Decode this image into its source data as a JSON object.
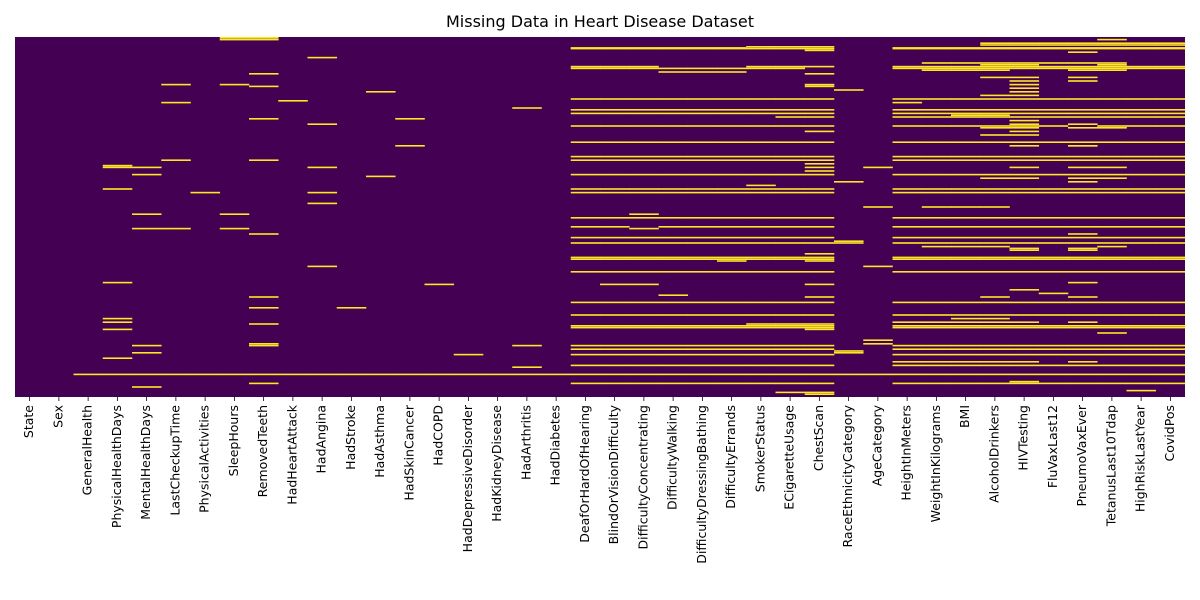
{
  "chart_data": {
    "type": "heatmap",
    "title": "Missing Data in Heart Disease Dataset",
    "xlabel": "",
    "ylabel": "",
    "colormap": {
      "low": "#440154",
      "high": "#fde725"
    },
    "legend": "none",
    "grid": false,
    "rows_normalized": true,
    "columns": [
      "State",
      "Sex",
      "GeneralHealth",
      "PhysicalHealthDays",
      "MentalHealthDays",
      "LastCheckupTime",
      "PhysicalActivities",
      "SleepHours",
      "RemovedTeeth",
      "HadHeartAttack",
      "HadAngina",
      "HadStroke",
      "HadAsthma",
      "HadSkinCancer",
      "HadCOPD",
      "HadDepressiveDisorder",
      "HadKidneyDisease",
      "HadArthritis",
      "HadDiabetes",
      "DeafOrHardOfHearing",
      "BlindOrVisionDifficulty",
      "DifficultyConcentrating",
      "DifficultyWalking",
      "DifficultyDressingBathing",
      "DifficultyErrands",
      "SmokerStatus",
      "ECigaretteUsage",
      "ChestScan",
      "RaceEthnicityCategory",
      "AgeCategory",
      "HeightInMeters",
      "WeightInKilograms",
      "BMI",
      "AlcoholDrinkers",
      "HIVTesting",
      "FluVaxLast12",
      "PneumoVaxEver",
      "TetanusLast10Tdap",
      "HighRiskLastYear",
      "CovidPos"
    ],
    "missing_rows": {
      "State": [],
      "Sex": [],
      "GeneralHealth": [
        0.935
      ],
      "PhysicalHealthDays": [
        0.355,
        0.36,
        0.42,
        0.68,
        0.78,
        0.79,
        0.81,
        0.89,
        0.935
      ],
      "MentalHealthDays": [
        0.36,
        0.38,
        0.49,
        0.53,
        0.855,
        0.875,
        0.97,
        0.935
      ],
      "LastCheckupTime": [
        0.13,
        0.18,
        0.34,
        0.53,
        0.935
      ],
      "PhysicalActivities": [
        0.43,
        0.935
      ],
      "SleepHours": [
        0.0,
        0.005,
        0.13,
        0.49,
        0.53,
        0.935
      ],
      "RemovedTeeth": [
        0.0,
        0.005,
        0.1,
        0.135,
        0.225,
        0.34,
        0.545,
        0.72,
        0.75,
        0.795,
        0.85,
        0.855,
        0.96,
        0.935
      ],
      "HadHeartAttack": [
        0.175,
        0.935
      ],
      "HadAngina": [
        0.055,
        0.24,
        0.36,
        0.43,
        0.46,
        0.635,
        0.935
      ],
      "HadStroke": [
        0.75,
        0.935
      ],
      "HadAsthma": [
        0.15,
        0.385,
        0.935
      ],
      "HadSkinCancer": [
        0.225,
        0.3,
        0.935
      ],
      "HadCOPD": [
        0.685,
        0.935
      ],
      "HadDepressiveDisorder": [
        0.88,
        0.935
      ],
      "HadKidneyDisease": [
        0.935
      ],
      "HadArthritis": [
        0.195,
        0.855,
        0.915,
        0.935
      ],
      "HadDiabetes": [
        0.935
      ],
      "DeafOrHardOfHearing": [
        0.028,
        0.03,
        0.08,
        0.085,
        0.17,
        0.2,
        0.21,
        0.245,
        0.29,
        0.33,
        0.34,
        0.38,
        0.42,
        0.43,
        0.5,
        0.525,
        0.555,
        0.57,
        0.61,
        0.615,
        0.65,
        0.735,
        0.77,
        0.8,
        0.805,
        0.855,
        0.865,
        0.88,
        0.91,
        0.935,
        0.96
      ],
      "BlindOrVisionDifficulty": [
        0.028,
        0.03,
        0.08,
        0.085,
        0.17,
        0.2,
        0.21,
        0.245,
        0.29,
        0.33,
        0.34,
        0.38,
        0.42,
        0.43,
        0.5,
        0.525,
        0.555,
        0.57,
        0.61,
        0.615,
        0.65,
        0.685,
        0.735,
        0.77,
        0.8,
        0.805,
        0.855,
        0.865,
        0.88,
        0.91,
        0.935,
        0.96
      ],
      "DifficultyConcentrating": [
        0.028,
        0.03,
        0.08,
        0.085,
        0.17,
        0.2,
        0.21,
        0.245,
        0.29,
        0.33,
        0.34,
        0.38,
        0.42,
        0.43,
        0.49,
        0.5,
        0.53,
        0.555,
        0.57,
        0.61,
        0.615,
        0.65,
        0.685,
        0.735,
        0.77,
        0.8,
        0.805,
        0.855,
        0.865,
        0.88,
        0.91,
        0.935,
        0.96
      ],
      "DifficultyWalking": [
        0.028,
        0.03,
        0.085,
        0.095,
        0.17,
        0.2,
        0.21,
        0.245,
        0.29,
        0.33,
        0.34,
        0.38,
        0.42,
        0.43,
        0.5,
        0.525,
        0.555,
        0.57,
        0.61,
        0.615,
        0.65,
        0.715,
        0.735,
        0.77,
        0.8,
        0.805,
        0.855,
        0.865,
        0.88,
        0.91,
        0.935,
        0.96
      ],
      "DifficultyDressingBathing": [
        0.028,
        0.03,
        0.085,
        0.095,
        0.17,
        0.2,
        0.21,
        0.245,
        0.29,
        0.33,
        0.34,
        0.38,
        0.42,
        0.43,
        0.5,
        0.525,
        0.555,
        0.57,
        0.61,
        0.615,
        0.65,
        0.735,
        0.77,
        0.8,
        0.805,
        0.855,
        0.865,
        0.88,
        0.91,
        0.935,
        0.96
      ],
      "DifficultyErrands": [
        0.028,
        0.03,
        0.085,
        0.095,
        0.17,
        0.2,
        0.21,
        0.245,
        0.29,
        0.33,
        0.34,
        0.38,
        0.42,
        0.43,
        0.5,
        0.525,
        0.555,
        0.57,
        0.61,
        0.615,
        0.62,
        0.65,
        0.735,
        0.77,
        0.8,
        0.805,
        0.855,
        0.865,
        0.88,
        0.91,
        0.935,
        0.96
      ],
      "SmokerStatus": [
        0.025,
        0.03,
        0.08,
        0.085,
        0.17,
        0.2,
        0.21,
        0.245,
        0.29,
        0.33,
        0.34,
        0.38,
        0.41,
        0.42,
        0.43,
        0.5,
        0.525,
        0.555,
        0.57,
        0.61,
        0.615,
        0.65,
        0.735,
        0.77,
        0.795,
        0.8,
        0.805,
        0.855,
        0.865,
        0.88,
        0.91,
        0.935,
        0.96
      ],
      "ECigaretteUsage": [
        0.025,
        0.03,
        0.08,
        0.085,
        0.17,
        0.2,
        0.21,
        0.22,
        0.245,
        0.29,
        0.33,
        0.34,
        0.38,
        0.42,
        0.43,
        0.5,
        0.525,
        0.555,
        0.57,
        0.61,
        0.615,
        0.65,
        0.735,
        0.77,
        0.795,
        0.8,
        0.805,
        0.855,
        0.865,
        0.88,
        0.91,
        0.935,
        0.96,
        0.985
      ],
      "ChestScan": [
        0.025,
        0.03,
        0.035,
        0.08,
        0.1,
        0.13,
        0.135,
        0.17,
        0.2,
        0.21,
        0.22,
        0.245,
        0.26,
        0.29,
        0.33,
        0.34,
        0.35,
        0.36,
        0.37,
        0.38,
        0.42,
        0.43,
        0.5,
        0.525,
        0.555,
        0.57,
        0.6,
        0.61,
        0.615,
        0.62,
        0.65,
        0.685,
        0.72,
        0.735,
        0.77,
        0.795,
        0.8,
        0.805,
        0.81,
        0.855,
        0.865,
        0.88,
        0.91,
        0.935,
        0.96,
        0.985,
        0.99
      ],
      "RaceEthnicityCategory": [
        0.145,
        0.4,
        0.565,
        0.57,
        0.87,
        0.875,
        0.935
      ],
      "AgeCategory": [
        0.36,
        0.47,
        0.635,
        0.84,
        0.85,
        0.935
      ],
      "HeightInMeters": [
        0.028,
        0.03,
        0.08,
        0.085,
        0.17,
        0.18,
        0.2,
        0.21,
        0.22,
        0.245,
        0.29,
        0.33,
        0.34,
        0.38,
        0.42,
        0.43,
        0.5,
        0.525,
        0.555,
        0.57,
        0.61,
        0.615,
        0.65,
        0.735,
        0.77,
        0.79,
        0.8,
        0.805,
        0.855,
        0.865,
        0.88,
        0.9,
        0.91,
        0.935,
        0.96
      ],
      "WeightInKilograms": [
        0.028,
        0.03,
        0.07,
        0.08,
        0.085,
        0.09,
        0.17,
        0.2,
        0.21,
        0.22,
        0.245,
        0.29,
        0.33,
        0.34,
        0.38,
        0.42,
        0.43,
        0.47,
        0.5,
        0.525,
        0.555,
        0.57,
        0.58,
        0.61,
        0.615,
        0.65,
        0.735,
        0.77,
        0.79,
        0.8,
        0.805,
        0.855,
        0.865,
        0.88,
        0.9,
        0.91,
        0.935,
        0.96
      ],
      "BMI": [
        0.028,
        0.03,
        0.07,
        0.08,
        0.085,
        0.09,
        0.17,
        0.2,
        0.21,
        0.215,
        0.22,
        0.245,
        0.29,
        0.33,
        0.34,
        0.38,
        0.42,
        0.43,
        0.47,
        0.5,
        0.525,
        0.555,
        0.57,
        0.58,
        0.61,
        0.615,
        0.65,
        0.735,
        0.77,
        0.78,
        0.79,
        0.8,
        0.805,
        0.855,
        0.865,
        0.88,
        0.9,
        0.91,
        0.935,
        0.96
      ],
      "AlcoholDrinkers": [
        0.015,
        0.02,
        0.028,
        0.03,
        0.07,
        0.075,
        0.08,
        0.085,
        0.09,
        0.11,
        0.16,
        0.17,
        0.2,
        0.21,
        0.215,
        0.22,
        0.245,
        0.25,
        0.27,
        0.29,
        0.33,
        0.34,
        0.38,
        0.39,
        0.42,
        0.43,
        0.47,
        0.5,
        0.525,
        0.555,
        0.57,
        0.58,
        0.61,
        0.615,
        0.65,
        0.72,
        0.735,
        0.77,
        0.78,
        0.79,
        0.8,
        0.805,
        0.855,
        0.865,
        0.88,
        0.9,
        0.91,
        0.935,
        0.96
      ],
      "HIVTesting": [
        0.015,
        0.02,
        0.028,
        0.03,
        0.07,
        0.075,
        0.08,
        0.085,
        0.11,
        0.12,
        0.13,
        0.14,
        0.15,
        0.16,
        0.17,
        0.2,
        0.21,
        0.22,
        0.23,
        0.24,
        0.245,
        0.25,
        0.26,
        0.27,
        0.29,
        0.3,
        0.33,
        0.34,
        0.36,
        0.38,
        0.39,
        0.42,
        0.43,
        0.5,
        0.525,
        0.555,
        0.57,
        0.585,
        0.59,
        0.61,
        0.615,
        0.65,
        0.7,
        0.735,
        0.77,
        0.79,
        0.8,
        0.805,
        0.855,
        0.865,
        0.88,
        0.9,
        0.91,
        0.935,
        0.955,
        0.96
      ],
      "FluVaxLast12": [
        0.015,
        0.02,
        0.028,
        0.03,
        0.07,
        0.08,
        0.085,
        0.17,
        0.2,
        0.21,
        0.22,
        0.245,
        0.29,
        0.33,
        0.34,
        0.38,
        0.42,
        0.43,
        0.5,
        0.525,
        0.555,
        0.57,
        0.61,
        0.615,
        0.65,
        0.71,
        0.735,
        0.77,
        0.8,
        0.805,
        0.855,
        0.865,
        0.88,
        0.91,
        0.935,
        0.96
      ],
      "PneumoVaxEver": [
        0.015,
        0.02,
        0.028,
        0.03,
        0.04,
        0.07,
        0.08,
        0.085,
        0.09,
        0.11,
        0.12,
        0.17,
        0.2,
        0.21,
        0.22,
        0.24,
        0.25,
        0.29,
        0.3,
        0.3,
        0.33,
        0.34,
        0.36,
        0.38,
        0.39,
        0.4,
        0.42,
        0.43,
        0.5,
        0.525,
        0.545,
        0.555,
        0.57,
        0.585,
        0.59,
        0.61,
        0.615,
        0.65,
        0.68,
        0.72,
        0.735,
        0.77,
        0.79,
        0.8,
        0.805,
        0.855,
        0.865,
        0.88,
        0.9,
        0.91,
        0.935,
        0.96
      ],
      "TetanusLast10Tdap": [
        0.005,
        0.015,
        0.02,
        0.028,
        0.03,
        0.07,
        0.075,
        0.08,
        0.085,
        0.09,
        0.17,
        0.2,
        0.21,
        0.22,
        0.245,
        0.25,
        0.29,
        0.33,
        0.34,
        0.36,
        0.38,
        0.39,
        0.42,
        0.43,
        0.5,
        0.525,
        0.555,
        0.57,
        0.58,
        0.61,
        0.615,
        0.65,
        0.735,
        0.77,
        0.8,
        0.805,
        0.82,
        0.855,
        0.865,
        0.88,
        0.91,
        0.935,
        0.96
      ],
      "HighRiskLastYear": [
        0.015,
        0.02,
        0.028,
        0.03,
        0.08,
        0.085,
        0.17,
        0.2,
        0.21,
        0.22,
        0.245,
        0.29,
        0.33,
        0.34,
        0.38,
        0.42,
        0.43,
        0.5,
        0.525,
        0.555,
        0.57,
        0.61,
        0.615,
        0.65,
        0.735,
        0.77,
        0.8,
        0.805,
        0.855,
        0.865,
        0.88,
        0.91,
        0.935,
        0.96,
        0.98
      ],
      "CovidPos": [
        0.015,
        0.02,
        0.028,
        0.03,
        0.08,
        0.085,
        0.17,
        0.2,
        0.21,
        0.22,
        0.245,
        0.29,
        0.33,
        0.34,
        0.38,
        0.42,
        0.43,
        0.5,
        0.525,
        0.555,
        0.57,
        0.61,
        0.615,
        0.65,
        0.735,
        0.77,
        0.8,
        0.805,
        0.855,
        0.865,
        0.88,
        0.91,
        0.935,
        0.96
      ]
    }
  }
}
